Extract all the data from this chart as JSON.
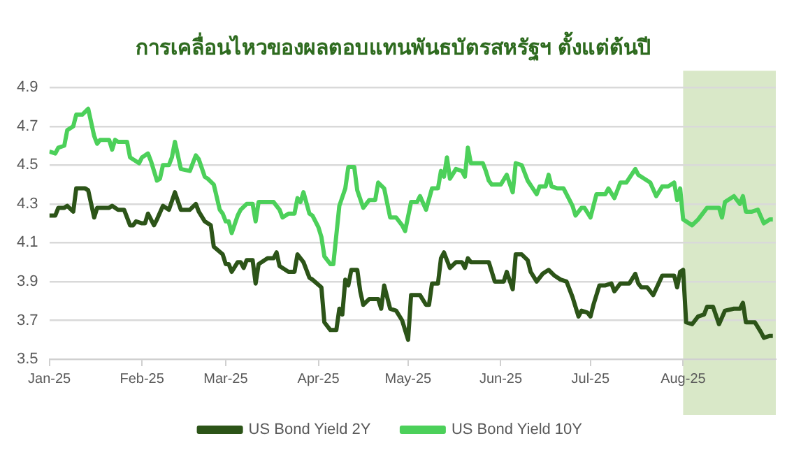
{
  "chart_data": {
    "type": "line",
    "title": "การเคลื่อนไหวของผลตอบแทนพันธบัตรสหรัฐฯ ตั้งแต่ต้นปี",
    "xlim": [
      "2025-01-01",
      "2025-09-01"
    ],
    "xticks": [
      {
        "value": "2025-01-01",
        "label": "Jan-25"
      },
      {
        "value": "2025-02-01",
        "label": "Feb-25"
      },
      {
        "value": "2025-03-01",
        "label": "Mar-25"
      },
      {
        "value": "2025-04-01",
        "label": "Apr-25"
      },
      {
        "value": "2025-05-01",
        "label": "May-25"
      },
      {
        "value": "2025-06-01",
        "label": "Jun-25"
      },
      {
        "value": "2025-07-01",
        "label": "Jul-25"
      },
      {
        "value": "2025-08-01",
        "label": "Aug-25"
      }
    ],
    "ylim": [
      3.5,
      4.9
    ],
    "yticks": [
      3.5,
      3.7,
      3.9,
      4.1,
      4.3,
      4.5,
      4.7,
      4.9
    ],
    "grid": "y",
    "legend": "bottom",
    "marker": "none",
    "line_style": "solid",
    "bands": [
      {
        "axis": "x",
        "from": "2025-08-01",
        "to": "2025-09-01",
        "color": "#d9e8c8"
      }
    ],
    "series": [
      {
        "name": "US Bond Yield 2Y",
        "color": "#2c5418",
        "x": [
          "2025-01-01",
          "2025-01-03",
          "2025-01-04",
          "2025-01-06",
          "2025-01-07",
          "2025-01-09",
          "2025-01-10",
          "2025-01-13",
          "2025-01-14",
          "2025-01-16",
          "2025-01-17",
          "2025-01-21",
          "2025-01-22",
          "2025-01-24",
          "2025-01-26",
          "2025-01-28",
          "2025-01-29",
          "2025-01-30",
          "2025-02-01",
          "2025-02-02",
          "2025-02-03",
          "2025-02-05",
          "2025-02-06",
          "2025-02-08",
          "2025-02-10",
          "2025-02-12",
          "2025-02-14",
          "2025-02-17",
          "2025-02-19",
          "2025-02-20",
          "2025-02-22",
          "2025-02-24",
          "2025-02-25",
          "2025-02-28",
          "2025-03-01",
          "2025-03-02",
          "2025-03-03",
          "2025-03-05",
          "2025-03-06",
          "2025-03-07",
          "2025-03-08",
          "2025-03-10",
          "2025-03-11",
          "2025-03-12",
          "2025-03-15",
          "2025-03-17",
          "2025-03-18",
          "2025-03-19",
          "2025-03-22",
          "2025-03-24",
          "2025-03-25",
          "2025-03-26",
          "2025-03-27",
          "2025-03-29",
          "2025-03-30",
          "2025-04-02",
          "2025-04-03",
          "2025-04-05",
          "2025-04-07",
          "2025-04-08",
          "2025-04-09",
          "2025-04-10",
          "2025-04-11",
          "2025-04-12",
          "2025-04-14",
          "2025-04-15",
          "2025-04-16",
          "2025-04-18",
          "2025-04-21",
          "2025-04-22",
          "2025-04-23",
          "2025-04-25",
          "2025-04-27",
          "2025-04-29",
          "2025-04-30",
          "2025-05-01",
          "2025-05-02",
          "2025-05-05",
          "2025-05-07",
          "2025-05-08",
          "2025-05-09",
          "2025-05-11",
          "2025-05-12",
          "2025-05-13",
          "2025-05-15",
          "2025-05-17",
          "2025-05-19",
          "2025-05-20",
          "2025-05-21",
          "2025-05-22",
          "2025-05-28",
          "2025-05-30",
          "2025-06-02",
          "2025-06-03",
          "2025-06-05",
          "2025-06-06",
          "2025-06-08",
          "2025-06-10",
          "2025-06-11",
          "2025-06-13",
          "2025-06-15",
          "2025-06-17",
          "2025-06-19",
          "2025-06-21",
          "2025-06-23",
          "2025-06-25",
          "2025-06-27",
          "2025-06-28",
          "2025-06-30",
          "2025-07-01",
          "2025-07-02",
          "2025-07-04",
          "2025-07-06",
          "2025-07-08",
          "2025-07-09",
          "2025-07-11",
          "2025-07-14",
          "2025-07-16",
          "2025-07-17",
          "2025-07-18",
          "2025-07-20",
          "2025-07-22",
          "2025-07-25",
          "2025-07-29",
          "2025-07-30",
          "2025-07-31",
          "2025-08-01",
          "2025-08-02",
          "2025-08-04",
          "2025-08-06",
          "2025-08-08",
          "2025-08-09",
          "2025-08-11",
          "2025-08-13",
          "2025-08-15",
          "2025-08-18",
          "2025-08-20",
          "2025-08-21",
          "2025-08-22",
          "2025-08-25",
          "2025-08-27",
          "2025-08-28",
          "2025-08-30",
          "2025-08-31"
        ],
        "values": [
          4.24,
          4.24,
          4.28,
          4.28,
          4.29,
          4.26,
          4.38,
          4.38,
          4.37,
          4.23,
          4.28,
          4.28,
          4.29,
          4.27,
          4.27,
          4.19,
          4.19,
          4.21,
          4.2,
          4.2,
          4.25,
          4.19,
          4.22,
          4.29,
          4.27,
          4.36,
          4.27,
          4.27,
          4.3,
          4.26,
          4.21,
          4.19,
          4.08,
          4.04,
          3.99,
          3.99,
          3.95,
          4.0,
          4.0,
          3.97,
          4.01,
          4.01,
          3.89,
          3.99,
          4.02,
          4.02,
          4.05,
          3.98,
          3.95,
          3.95,
          4.04,
          4.02,
          4.0,
          3.92,
          3.91,
          3.87,
          3.69,
          3.65,
          3.65,
          3.76,
          3.73,
          3.91,
          3.88,
          3.96,
          3.96,
          3.85,
          3.78,
          3.81,
          3.81,
          3.76,
          3.88,
          3.76,
          3.75,
          3.7,
          3.65,
          3.6,
          3.83,
          3.83,
          3.78,
          3.78,
          3.89,
          3.89,
          4.02,
          4.05,
          3.97,
          4.0,
          4.0,
          3.97,
          4.02,
          4.0,
          4.0,
          3.9,
          3.9,
          3.95,
          3.86,
          4.04,
          4.04,
          4.01,
          3.95,
          3.9,
          3.94,
          3.96,
          3.93,
          3.91,
          3.9,
          3.82,
          3.72,
          3.75,
          3.74,
          3.72,
          3.78,
          3.88,
          3.88,
          3.89,
          3.85,
          3.89,
          3.89,
          3.94,
          3.89,
          3.87,
          3.87,
          3.83,
          3.93,
          3.93,
          3.87,
          3.95,
          3.96,
          3.69,
          3.68,
          3.72,
          3.73,
          3.77,
          3.77,
          3.68,
          3.75,
          3.76,
          3.76,
          3.79,
          3.69,
          3.69,
          3.64,
          3.61,
          3.62,
          3.62
        ]
      },
      {
        "name": "US Bond Yield 10Y",
        "color": "#4cd05a",
        "x": [
          "2025-01-01",
          "2025-01-03",
          "2025-01-04",
          "2025-01-06",
          "2025-01-07",
          "2025-01-09",
          "2025-01-10",
          "2025-01-12",
          "2025-01-14",
          "2025-01-16",
          "2025-01-17",
          "2025-01-18",
          "2025-01-21",
          "2025-01-22",
          "2025-01-23",
          "2025-01-24",
          "2025-01-27",
          "2025-01-28",
          "2025-01-29",
          "2025-01-31",
          "2025-02-01",
          "2025-02-03",
          "2025-02-04",
          "2025-02-06",
          "2025-02-07",
          "2025-02-08",
          "2025-02-10",
          "2025-02-11",
          "2025-02-12",
          "2025-02-14",
          "2025-02-17",
          "2025-02-19",
          "2025-02-20",
          "2025-02-22",
          "2025-02-23",
          "2025-02-25",
          "2025-02-27",
          "2025-02-28",
          "2025-03-01",
          "2025-03-02",
          "2025-03-03",
          "2025-03-05",
          "2025-03-06",
          "2025-03-08",
          "2025-03-10",
          "2025-03-11",
          "2025-03-12",
          "2025-03-15",
          "2025-03-17",
          "2025-03-19",
          "2025-03-20",
          "2025-03-22",
          "2025-03-24",
          "2025-03-25",
          "2025-03-26",
          "2025-03-27",
          "2025-03-29",
          "2025-03-30",
          "2025-04-01",
          "2025-04-02",
          "2025-04-03",
          "2025-04-05",
          "2025-04-06",
          "2025-04-08",
          "2025-04-10",
          "2025-04-11",
          "2025-04-13",
          "2025-04-14",
          "2025-04-16",
          "2025-04-18",
          "2025-04-20",
          "2025-04-21",
          "2025-04-23",
          "2025-04-25",
          "2025-04-27",
          "2025-04-29",
          "2025-04-30",
          "2025-05-02",
          "2025-05-04",
          "2025-05-05",
          "2025-05-07",
          "2025-05-09",
          "2025-05-11",
          "2025-05-12",
          "2025-05-13",
          "2025-05-14",
          "2025-05-15",
          "2025-05-17",
          "2025-05-19",
          "2025-05-20",
          "2025-05-21",
          "2025-05-22",
          "2025-05-26",
          "2025-05-27",
          "2025-05-28",
          "2025-05-29",
          "2025-06-01",
          "2025-06-03",
          "2025-06-05",
          "2025-06-06",
          "2025-06-08",
          "2025-06-10",
          "2025-06-13",
          "2025-06-14",
          "2025-06-16",
          "2025-06-17",
          "2025-06-18",
          "2025-06-20",
          "2025-06-22",
          "2025-06-25",
          "2025-06-26",
          "2025-06-28",
          "2025-06-29",
          "2025-07-01",
          "2025-07-03",
          "2025-07-06",
          "2025-07-07",
          "2025-07-09",
          "2025-07-11",
          "2025-07-13",
          "2025-07-16",
          "2025-07-17",
          "2025-07-19",
          "2025-07-21",
          "2025-07-23",
          "2025-07-25",
          "2025-07-27",
          "2025-07-29",
          "2025-07-30",
          "2025-07-31",
          "2025-08-01",
          "2025-08-04",
          "2025-08-06",
          "2025-08-09",
          "2025-08-13",
          "2025-08-14",
          "2025-08-15",
          "2025-08-18",
          "2025-08-20",
          "2025-08-21",
          "2025-08-22",
          "2025-08-24",
          "2025-08-26",
          "2025-08-28",
          "2025-08-30",
          "2025-08-31"
        ],
        "values": [
          4.57,
          4.56,
          4.59,
          4.6,
          4.68,
          4.7,
          4.76,
          4.76,
          4.79,
          4.65,
          4.61,
          4.63,
          4.63,
          4.58,
          4.63,
          4.62,
          4.62,
          4.54,
          4.53,
          4.51,
          4.54,
          4.56,
          4.52,
          4.42,
          4.43,
          4.5,
          4.5,
          4.54,
          4.62,
          4.48,
          4.47,
          4.55,
          4.53,
          4.44,
          4.43,
          4.4,
          4.27,
          4.25,
          4.21,
          4.21,
          4.15,
          4.24,
          4.27,
          4.3,
          4.3,
          4.21,
          4.31,
          4.31,
          4.31,
          4.27,
          4.23,
          4.25,
          4.25,
          4.33,
          4.31,
          4.36,
          4.25,
          4.24,
          4.18,
          4.13,
          4.03,
          3.99,
          3.99,
          4.29,
          4.38,
          4.49,
          4.49,
          4.37,
          4.28,
          4.32,
          4.32,
          4.41,
          4.38,
          4.23,
          4.23,
          4.19,
          4.16,
          4.31,
          4.31,
          4.34,
          4.27,
          4.38,
          4.38,
          4.47,
          4.44,
          4.54,
          4.43,
          4.48,
          4.47,
          4.44,
          4.59,
          4.51,
          4.51,
          4.47,
          4.42,
          4.4,
          4.4,
          4.45,
          4.36,
          4.51,
          4.5,
          4.42,
          4.35,
          4.39,
          4.39,
          4.45,
          4.39,
          4.38,
          4.38,
          4.29,
          4.24,
          4.28,
          4.28,
          4.23,
          4.35,
          4.35,
          4.38,
          4.33,
          4.41,
          4.41,
          4.48,
          4.45,
          4.43,
          4.41,
          4.34,
          4.39,
          4.39,
          4.41,
          4.32,
          4.38,
          4.22,
          4.19,
          4.22,
          4.28,
          4.28,
          4.23,
          4.31,
          4.34,
          4.3,
          4.34,
          4.26,
          4.26,
          4.27,
          4.2,
          4.22,
          4.22
        ]
      }
    ]
  }
}
